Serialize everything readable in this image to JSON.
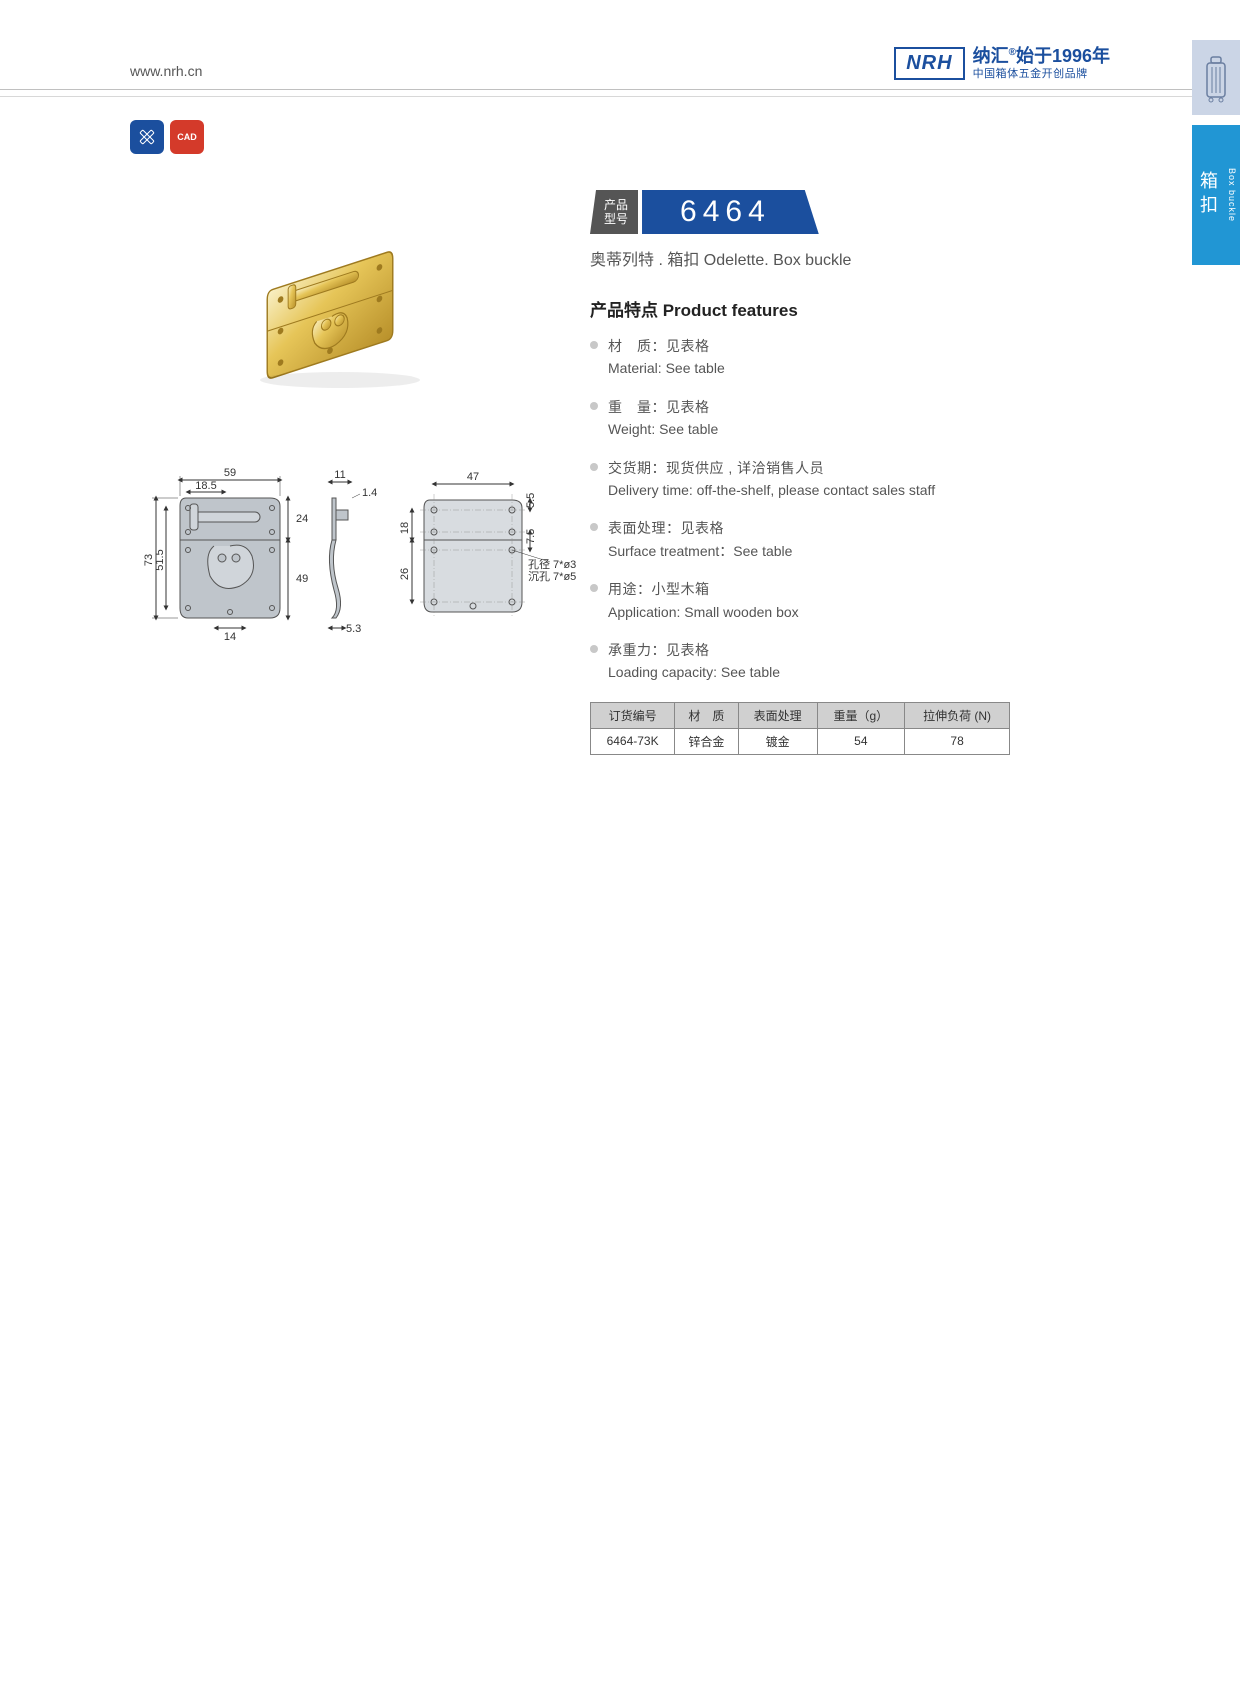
{
  "header": {
    "url": "www.nrh.cn",
    "logo_mark": "NRH",
    "logo_line1_a": "纳汇",
    "logo_line1_b": "始于",
    "logo_year": "1996",
    "logo_line1_c": "年",
    "logo_line2": "中国箱体五金开创品牌",
    "reg": "®"
  },
  "side_tab": {
    "cn": "箱扣",
    "en": "Box buckle"
  },
  "toolbar": {
    "btn1_title": "尺寸",
    "btn2_label": "CAD"
  },
  "model": {
    "label_l1": "产品",
    "label_l2": "型号",
    "number": "6464",
    "subtitle": "奥蒂列特 . 箱扣  Odelette. Box buckle"
  },
  "features": {
    "title": "产品特点  Product features",
    "items": [
      {
        "cn": "材　质：见表格",
        "en": "Material: See table"
      },
      {
        "cn": "重　量：见表格",
        "en": "Weight: See table"
      },
      {
        "cn": "交货期：现货供应 , 详洽销售人员",
        "en": "Delivery time: off-the-shelf, please contact sales staff"
      },
      {
        "cn": "表面处理：见表格",
        "en": "Surface treatment：See table"
      },
      {
        "cn": "用途：小型木箱",
        "en": "Application: Small wooden box"
      },
      {
        "cn": "承重力：见表格",
        "en": "Loading capacity: See table"
      }
    ]
  },
  "spec_table": {
    "headers": [
      "订货编号",
      "材　质",
      "表面处理",
      "重量（g）",
      "拉伸负荷 (N)"
    ],
    "rows": [
      [
        "6464-73K",
        "锌合金",
        "镀金",
        "54",
        "78"
      ]
    ]
  },
  "drawing": {
    "front": {
      "w": "59",
      "w_inner": "18.5",
      "h": "73",
      "h_inner": "51.5",
      "top_gap": "24",
      "bot_gap": "49",
      "base": "14"
    },
    "side": {
      "w": "11",
      "t_top": "1.4",
      "t_bot": "5.3"
    },
    "right": {
      "w": "47",
      "g_top": "5.5",
      "g_bot": "7.5",
      "h_up": "18",
      "h_low": "26",
      "hole1": "孔径 7*ø3",
      "hole2": "沉孔 7*ø5"
    },
    "colors": {
      "metal_fill": "#b8bec4",
      "metal_stroke": "#555",
      "dim_stroke": "#333",
      "gold_light": "#f4e4a8",
      "gold_mid": "#d4af37",
      "gold_dark": "#9e7a1f"
    }
  }
}
